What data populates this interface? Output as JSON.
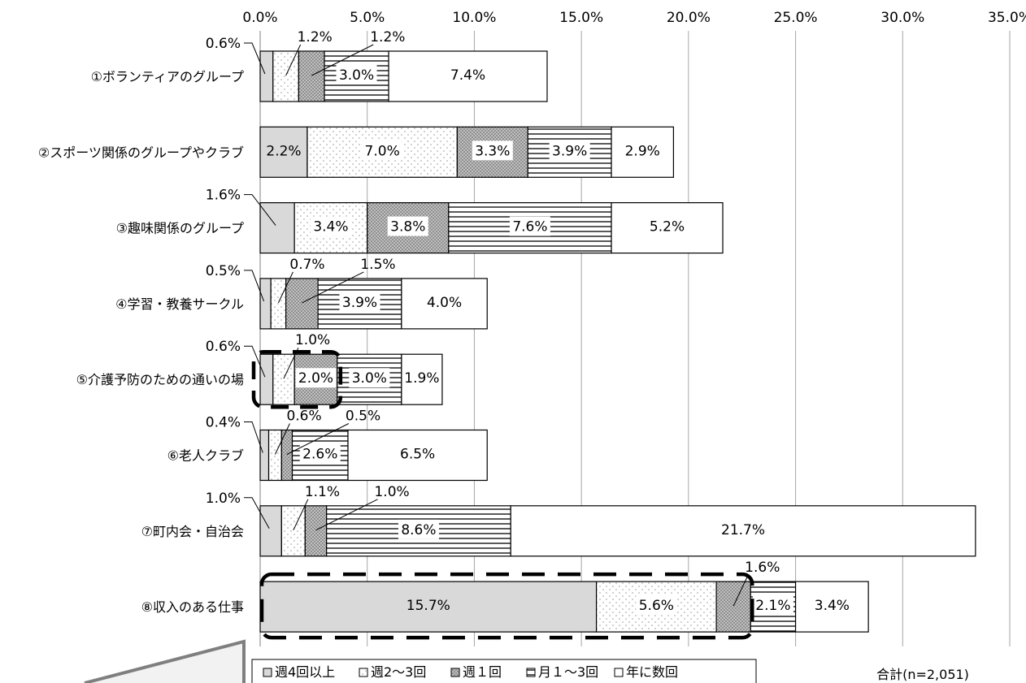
{
  "chart_data": {
    "type": "bar",
    "stacked": true,
    "orientation": "horizontal",
    "title": "",
    "xlabel": "",
    "ylabel": "",
    "xlim": [
      0,
      35
    ],
    "x_ticks": [
      "0.0%",
      "5.0%",
      "10.0%",
      "15.0%",
      "20.0%",
      "25.0%",
      "30.0%",
      "35.0%"
    ],
    "grid": true,
    "legend_position": "bottom",
    "categories": [
      "①ボランティアのグループ",
      "②スポーツ関係のグループやクラブ",
      "③趣味関係のグループ",
      "④学習・教養サークル",
      "⑤介護予防のための通いの場",
      "⑥老人クラブ",
      "⑦町内会・自治会",
      "⑧収入のある仕事"
    ],
    "series": [
      {
        "name": "週4回以上",
        "values": [
          0.6,
          2.2,
          1.6,
          0.5,
          0.6,
          0.4,
          1.0,
          15.7
        ]
      },
      {
        "name": "週2～3回",
        "values": [
          1.2,
          7.0,
          3.4,
          0.7,
          1.0,
          0.6,
          1.1,
          5.6
        ]
      },
      {
        "name": "週１回",
        "values": [
          1.2,
          3.3,
          3.8,
          1.5,
          2.0,
          0.5,
          1.0,
          1.6
        ]
      },
      {
        "name": "月１～3回",
        "values": [
          3.0,
          3.9,
          7.6,
          3.9,
          3.0,
          2.6,
          8.6,
          2.1
        ]
      },
      {
        "name": "年に数回",
        "values": [
          7.4,
          2.9,
          5.2,
          4.0,
          1.9,
          6.5,
          21.7,
          3.4
        ]
      }
    ],
    "data_labels": [
      [
        "0.6%",
        "1.2%",
        "1.2%",
        "3.0%",
        "7.4%"
      ],
      [
        "2.2%",
        "7.0%",
        "3.3%",
        "3.9%",
        "2.9%"
      ],
      [
        "1.6%",
        "3.4%",
        "3.8%",
        "7.6%",
        "5.2%"
      ],
      [
        "0.5%",
        "0.7%",
        "1.5%",
        "3.9%",
        "4.0%"
      ],
      [
        "0.6%",
        "1.0%",
        "2.0%",
        "3.0%",
        "1.9%"
      ],
      [
        "0.4%",
        "0.6%",
        "0.5%",
        "2.6%",
        "6.5%"
      ],
      [
        "1.0%",
        "1.1%",
        "1.0%",
        "8.6%",
        "21.7%"
      ],
      [
        "15.7%",
        "5.6%",
        "1.6%",
        "2.1%",
        "3.4%"
      ]
    ],
    "annotation": "合計(n=2,051)"
  },
  "colors": {
    "weekly4": "#d9d9d9",
    "weekly23_dots": "#9a9a9a",
    "weekly1": "#a6a6a6",
    "monthly_lines": "#000000",
    "grid": "#a6a6a6",
    "callout": "#7f7f7f"
  }
}
